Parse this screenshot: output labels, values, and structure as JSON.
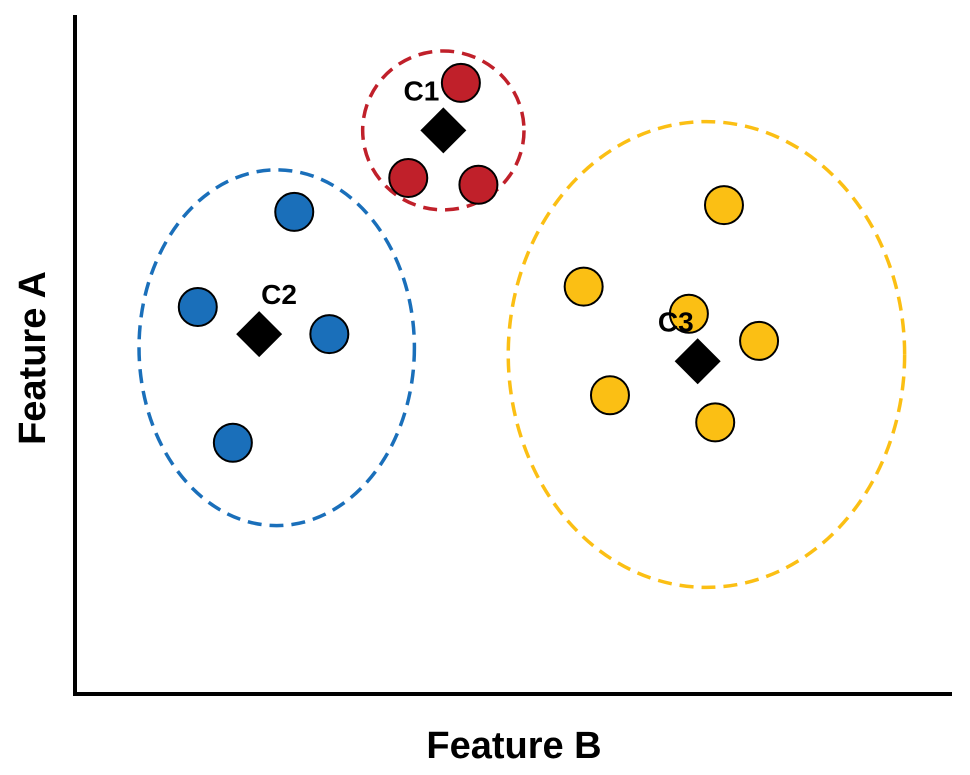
{
  "chart_data": {
    "type": "scatter",
    "title": "",
    "xlabel": "Feature B",
    "ylabel": "Feature A",
    "xlim": [
      0,
      10
    ],
    "ylim": [
      0,
      10
    ],
    "grid": false,
    "ticks_visible": false,
    "legend": "none",
    "clusters": [
      {
        "label": "C1",
        "color": "#c0202a",
        "centroid": [
          4.2,
          8.3
        ],
        "boundary": {
          "center": [
            4.2,
            8.3
          ],
          "rx": 0.92,
          "ry": 1.17
        },
        "points": [
          [
            4.4,
            9.0
          ],
          [
            3.8,
            7.6
          ],
          [
            4.6,
            7.5
          ]
        ]
      },
      {
        "label": "C2",
        "color": "#1a6fba",
        "centroid": [
          2.1,
          5.3
        ],
        "boundary": {
          "center": [
            2.3,
            5.1
          ],
          "rx": 1.57,
          "ry": 2.62
        },
        "points": [
          [
            2.5,
            7.1
          ],
          [
            1.4,
            5.7
          ],
          [
            2.9,
            5.3
          ],
          [
            1.8,
            3.7
          ]
        ]
      },
      {
        "label": "C3",
        "color": "#fbbf14",
        "centroid": [
          7.1,
          4.9
        ],
        "boundary": {
          "center": [
            7.2,
            5.0
          ],
          "rx": 2.26,
          "ry": 3.43
        },
        "points": [
          [
            5.8,
            6.0
          ],
          [
            7.4,
            7.2
          ],
          [
            7.0,
            5.6
          ],
          [
            7.8,
            5.2
          ],
          [
            6.1,
            4.4
          ],
          [
            7.3,
            4.0
          ]
        ]
      }
    ]
  }
}
